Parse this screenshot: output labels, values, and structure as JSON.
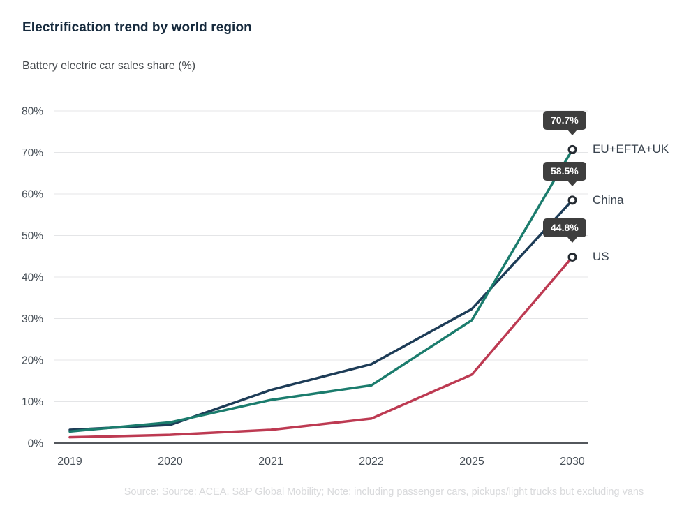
{
  "header": {
    "title": "Electrification trend by world region",
    "subtitle": "Battery electric car sales share (%)"
  },
  "footer": {
    "source_note": "Source: Source: ACEA, S&P Global Mobility; Note: including passenger cars, pickups/light trucks but excluding vans"
  },
  "chart_data": {
    "type": "line",
    "title": "Electrification trend by world region",
    "ylabel": "Battery electric car sales share (%)",
    "x_categories": [
      "2019",
      "2020",
      "2021",
      "2022",
      "2025",
      "2030"
    ],
    "ylim": [
      0,
      80
    ],
    "grid": true,
    "legend_position": "right-end-labels",
    "y_tick_values": [
      0,
      10,
      20,
      30,
      40,
      50,
      60,
      70,
      80
    ],
    "y_tick_labels": [
      "0%",
      "10%",
      "20%",
      "30%",
      "40%",
      "50%",
      "60%",
      "70%",
      "80%"
    ],
    "series": [
      {
        "id": "eu",
        "name": "EU+EFTA+UK",
        "color": "#1b7c6d",
        "end_label": "70.7%",
        "values": [
          2.8,
          5.0,
          10.4,
          13.9,
          29.6,
          70.7
        ]
      },
      {
        "id": "china",
        "name": "China",
        "color": "#1d3c57",
        "end_label": "58.5%",
        "values": [
          3.2,
          4.4,
          12.8,
          19.0,
          32.3,
          58.5
        ]
      },
      {
        "id": "us",
        "name": "US",
        "color": "#bd3a52",
        "end_label": "44.8%",
        "values": [
          1.4,
          2.0,
          3.2,
          5.9,
          16.5,
          44.8
        ]
      }
    ],
    "draw_order": [
      1,
      2,
      0
    ],
    "colors": {
      "grid": "#e4e5e7",
      "axis": "#53575c",
      "tick_text": "#474f57",
      "annotation_bg": "#3e3e3e",
      "annotation_text": "#ffffff",
      "point_fill": "#ffffff",
      "point_stroke": "#242a31"
    }
  }
}
